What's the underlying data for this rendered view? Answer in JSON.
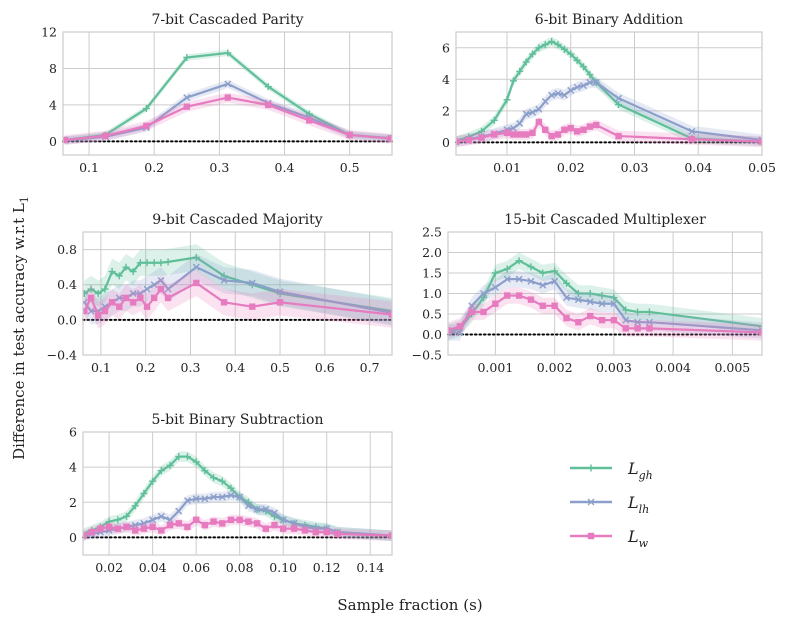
{
  "figure": {
    "ylabel": "Difference in test accuracy w.r.t L",
    "ylabel_sub": "1",
    "xlabel": "Sample fraction (s)"
  },
  "colors": {
    "Lgh": "#5fbf99",
    "Llh": "#8c9fcb",
    "Lw": "#e67bc0",
    "grid": "#cccccc",
    "zero": "#000000"
  },
  "legend": [
    {
      "key": "Lgh",
      "base": "L",
      "sub": "gh",
      "marker": "plus"
    },
    {
      "key": "Llh",
      "base": "L",
      "sub": "lh",
      "marker": "x"
    },
    {
      "key": "Lw",
      "base": "L",
      "sub": "w",
      "marker": "square"
    }
  ],
  "chart_data": [
    {
      "type": "line",
      "title": "7-bit Cascaded Parity",
      "xlim": [
        0.06,
        0.565
      ],
      "ylim": [
        -1.5,
        12
      ],
      "xticks": [
        0.1,
        0.2,
        0.3,
        0.4,
        0.5
      ],
      "xtick_labels": [
        "0.1",
        "0.2",
        "0.3",
        "0.4",
        "0.5"
      ],
      "yticks": [
        0,
        4,
        8,
        12
      ],
      "ytick_labels": [
        "0",
        "4",
        "8",
        "12"
      ],
      "x": [
        0.063,
        0.125,
        0.188,
        0.25,
        0.313,
        0.375,
        0.438,
        0.5,
        0.563
      ],
      "series": [
        {
          "key": "Lgh",
          "values": [
            0.15,
            0.7,
            3.6,
            9.2,
            9.7,
            6.0,
            3.0,
            0.7,
            0.35
          ],
          "band": 0.35
        },
        {
          "key": "Llh",
          "values": [
            0.1,
            0.5,
            1.5,
            4.8,
            6.3,
            4.2,
            2.6,
            0.7,
            0.3
          ],
          "band": 0.45
        },
        {
          "key": "Lw",
          "values": [
            0.15,
            0.6,
            1.7,
            3.8,
            4.8,
            4.0,
            2.3,
            0.7,
            0.3
          ],
          "band": 0.55
        }
      ]
    },
    {
      "type": "line",
      "title": "6-bit Binary Addition",
      "xlim": [
        0.002,
        0.05
      ],
      "ylim": [
        -0.8,
        7
      ],
      "xticks": [
        0.01,
        0.02,
        0.03,
        0.04,
        0.05
      ],
      "xtick_labels": [
        "0.01",
        "0.02",
        "0.03",
        "0.04",
        "0.05"
      ],
      "yticks": [
        0,
        2,
        4,
        6
      ],
      "ytick_labels": [
        "0",
        "2",
        "4",
        "6"
      ],
      "x": [
        0.002,
        0.004,
        0.006,
        0.008,
        0.01,
        0.011,
        0.012,
        0.013,
        0.014,
        0.015,
        0.016,
        0.017,
        0.018,
        0.019,
        0.02,
        0.021,
        0.022,
        0.023,
        0.024,
        0.0275,
        0.039,
        0.05
      ],
      "series": [
        {
          "key": "Lgh",
          "values": [
            0.1,
            0.35,
            0.7,
            1.4,
            2.7,
            3.9,
            4.5,
            5.1,
            5.6,
            6.0,
            6.2,
            6.4,
            6.2,
            5.9,
            5.6,
            5.2,
            4.8,
            4.3,
            3.8,
            2.4,
            0.25,
            0.05
          ],
          "band": 0.3
        },
        {
          "key": "Llh",
          "values": [
            0.05,
            0.2,
            0.35,
            0.55,
            0.8,
            0.9,
            1.2,
            1.8,
            1.9,
            2.1,
            2.6,
            3.0,
            3.1,
            3.0,
            3.3,
            3.5,
            3.6,
            3.8,
            3.8,
            2.8,
            0.7,
            0.15
          ],
          "band": 0.35
        },
        {
          "key": "Lw",
          "values": [
            0.05,
            0.15,
            0.3,
            0.5,
            0.6,
            0.5,
            0.5,
            0.5,
            0.6,
            1.3,
            0.8,
            0.4,
            0.5,
            0.8,
            0.9,
            0.7,
            0.8,
            1.0,
            1.1,
            0.4,
            0.2,
            0.05
          ],
          "band": 0.35
        }
      ]
    },
    {
      "type": "line",
      "title": "9-bit Cascaded Majority",
      "xlim": [
        0.06,
        0.75
      ],
      "ylim": [
        -0.4,
        1.0
      ],
      "xticks": [
        0.1,
        0.2,
        0.3,
        0.4,
        0.5,
        0.6,
        0.7
      ],
      "xtick_labels": [
        "0.1",
        "0.2",
        "0.3",
        "0.4",
        "0.5",
        "0.6",
        "0.7"
      ],
      "yticks": [
        -0.4,
        0.0,
        0.4,
        0.8
      ],
      "ytick_labels": [
        "−0.4",
        "0.0",
        "0.4",
        "0.8"
      ],
      "x": [
        0.063,
        0.078,
        0.094,
        0.109,
        0.125,
        0.141,
        0.156,
        0.172,
        0.188,
        0.203,
        0.219,
        0.234,
        0.25,
        0.313,
        0.375,
        0.438,
        0.5,
        0.75
      ],
      "series": [
        {
          "key": "Lgh",
          "values": [
            0.3,
            0.35,
            0.3,
            0.35,
            0.55,
            0.5,
            0.6,
            0.55,
            0.65,
            0.65,
            0.65,
            0.65,
            0.66,
            0.71,
            0.5,
            0.4,
            0.3,
            0.1
          ],
          "band": 0.15
        },
        {
          "key": "Llh",
          "values": [
            0.2,
            0.1,
            0.1,
            0.15,
            0.2,
            0.25,
            0.25,
            0.3,
            0.3,
            0.35,
            0.4,
            0.45,
            0.35,
            0.6,
            0.45,
            0.42,
            0.32,
            0.08
          ],
          "band": 0.15
        },
        {
          "key": "Lw",
          "values": [
            0.1,
            0.25,
            0.05,
            0.1,
            0.2,
            0.15,
            0.25,
            0.2,
            0.25,
            0.15,
            0.25,
            0.35,
            0.25,
            0.42,
            0.2,
            0.15,
            0.2,
            0.06
          ],
          "band": 0.15
        }
      ]
    },
    {
      "type": "line",
      "title": "15-bit Cascaded Multiplexer",
      "xlim": [
        0.0002,
        0.0055
      ],
      "ylim": [
        -0.5,
        2.5
      ],
      "xticks": [
        0.001,
        0.002,
        0.003,
        0.004,
        0.005
      ],
      "xtick_labels": [
        "0.001",
        "0.002",
        "0.003",
        "0.004",
        "0.005"
      ],
      "yticks": [
        -0.5,
        0.0,
        0.5,
        1.0,
        1.5,
        2.0,
        2.5
      ],
      "ytick_labels": [
        "−0.5",
        "0.0",
        "0.5",
        "1.0",
        "1.5",
        "2.0",
        "2.5"
      ],
      "x": [
        0.0002,
        0.0004,
        0.0006,
        0.0008,
        0.001,
        0.0012,
        0.0014,
        0.0016,
        0.0018,
        0.002,
        0.0022,
        0.0024,
        0.0026,
        0.0028,
        0.003,
        0.0032,
        0.0034,
        0.0036,
        0.0055
      ],
      "series": [
        {
          "key": "Lgh",
          "values": [
            0.05,
            0.15,
            0.5,
            0.9,
            1.5,
            1.6,
            1.8,
            1.65,
            1.5,
            1.55,
            1.25,
            1.0,
            1.0,
            0.95,
            0.9,
            0.6,
            0.55,
            0.55,
            0.2
          ],
          "band": 0.2
        },
        {
          "key": "Llh",
          "values": [
            0.05,
            0.05,
            0.7,
            1.0,
            1.15,
            1.35,
            1.35,
            1.3,
            1.2,
            1.3,
            0.9,
            0.85,
            0.8,
            0.75,
            0.75,
            0.35,
            0.3,
            0.3,
            0.1
          ],
          "band": 0.2
        },
        {
          "key": "Lw",
          "values": [
            0.1,
            0.2,
            0.55,
            0.55,
            0.75,
            0.95,
            0.95,
            0.85,
            0.7,
            0.7,
            0.4,
            0.3,
            0.45,
            0.35,
            0.35,
            0.15,
            0.15,
            0.15,
            0.05
          ],
          "band": 0.2
        }
      ]
    },
    {
      "type": "line",
      "title": "5-bit Binary Subtraction",
      "xlim": [
        0.008,
        0.15
      ],
      "ylim": [
        -1,
        6
      ],
      "xticks": [
        0.02,
        0.04,
        0.06,
        0.08,
        0.1,
        0.12,
        0.14
      ],
      "xtick_labels": [
        "0.02",
        "0.04",
        "0.06",
        "0.08",
        "0.10",
        "0.12",
        "0.14"
      ],
      "yticks": [
        0,
        2,
        4,
        6
      ],
      "ytick_labels": [
        "0",
        "2",
        "4",
        "6"
      ],
      "x": [
        0.008,
        0.012,
        0.016,
        0.02,
        0.024,
        0.028,
        0.032,
        0.036,
        0.04,
        0.044,
        0.048,
        0.052,
        0.056,
        0.06,
        0.064,
        0.068,
        0.072,
        0.076,
        0.08,
        0.084,
        0.088,
        0.092,
        0.096,
        0.1,
        0.105,
        0.11,
        0.115,
        0.12,
        0.125,
        0.15
      ],
      "series": [
        {
          "key": "Lgh",
          "values": [
            0.2,
            0.4,
            0.6,
            0.9,
            1.0,
            1.2,
            1.8,
            2.5,
            3.2,
            3.8,
            4.1,
            4.6,
            4.6,
            4.3,
            3.8,
            3.4,
            3.2,
            2.8,
            2.3,
            2.0,
            1.6,
            1.5,
            1.2,
            1.0,
            0.8,
            0.7,
            0.6,
            0.5,
            0.3,
            0.1
          ],
          "band": 0.3
        },
        {
          "key": "Llh",
          "values": [
            0.1,
            0.2,
            0.3,
            0.4,
            0.5,
            0.6,
            0.7,
            0.8,
            1.0,
            1.2,
            1.0,
            1.5,
            2.1,
            2.2,
            2.2,
            2.3,
            2.3,
            2.4,
            2.3,
            1.8,
            1.6,
            1.6,
            1.4,
            1.0,
            0.8,
            0.6,
            0.5,
            0.5,
            0.3,
            0.1
          ],
          "band": 0.3
        },
        {
          "key": "Lw",
          "values": [
            0.1,
            0.3,
            0.5,
            0.6,
            0.5,
            0.6,
            0.4,
            0.5,
            0.6,
            0.4,
            0.7,
            0.8,
            0.6,
            1.0,
            0.7,
            0.9,
            0.8,
            1.0,
            1.0,
            0.9,
            0.8,
            0.5,
            0.7,
            0.5,
            0.5,
            0.4,
            0.3,
            0.3,
            0.2,
            0.1
          ],
          "band": 0.3
        }
      ]
    }
  ]
}
